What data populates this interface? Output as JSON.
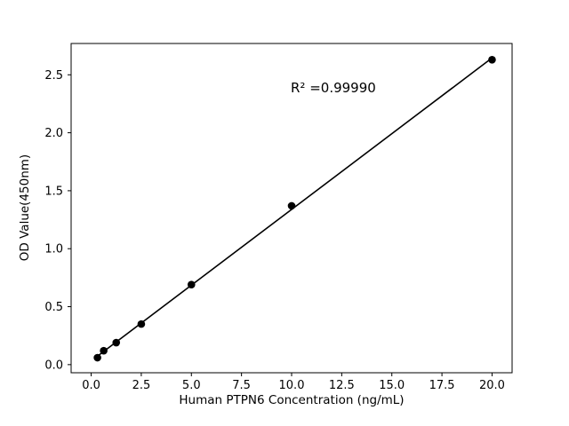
{
  "chart_data": {
    "type": "scatter",
    "title": "",
    "xlabel": "Human PTPN6 Concentration (ng/mL)",
    "ylabel": "OD Value(450nm)",
    "annotation": "R² =0.99990",
    "x": [
      0.313,
      0.625,
      1.25,
      2.5,
      5,
      10,
      20
    ],
    "y": [
      0.06,
      0.12,
      0.19,
      0.35,
      0.69,
      1.37,
      2.63
    ],
    "x_ticks": [
      0.0,
      2.5,
      5.0,
      7.5,
      10.0,
      12.5,
      15.0,
      17.5,
      20.0
    ],
    "y_ticks": [
      0.0,
      0.5,
      1.0,
      1.5,
      2.0,
      2.5
    ],
    "xlim": [
      -1.0,
      21.0
    ],
    "ylim": [
      -0.07,
      2.77
    ],
    "grid": false,
    "legend": null,
    "line_style": "solid-fit-line",
    "line_color": "#000000",
    "marker": "circle",
    "marker_color": "#000000",
    "background_color": "#ffffff"
  }
}
